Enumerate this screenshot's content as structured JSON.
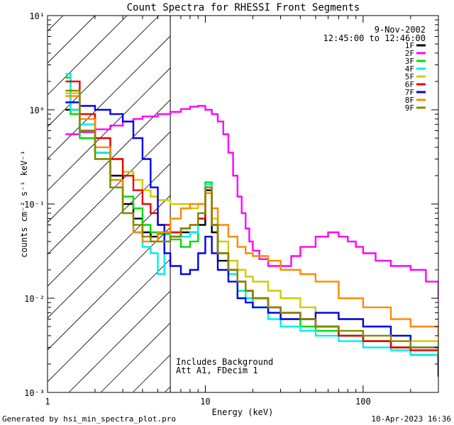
{
  "chart_data": {
    "type": "line",
    "title": "Count Spectra for RHESSI Front Segments",
    "xlabel": "Energy (keV)",
    "ylabel": "counts cm⁻² s⁻¹ keV⁻¹",
    "xscale": "log",
    "yscale": "log",
    "xlim": [
      1,
      300
    ],
    "ylim": [
      0.001,
      10
    ],
    "xticks": [
      {
        "value": 1,
        "label": "1"
      },
      {
        "value": 10,
        "label": "10"
      },
      {
        "value": 100,
        "label": "100"
      }
    ],
    "yticks": [
      {
        "value": 0.001,
        "label": "10⁻³"
      },
      {
        "value": 0.01,
        "label": "10⁻²"
      },
      {
        "value": 0.1,
        "label": "10⁻¹"
      },
      {
        "value": 1,
        "label": "10⁰"
      },
      {
        "value": 10,
        "label": "10¹"
      }
    ],
    "date": "9-Nov-2002",
    "time_range": "12:45:00 to 12:46:00",
    "shaded_region": {
      "x_from": 1,
      "x_to": 6,
      "pattern": "diagonal hatch"
    },
    "annotation_lines": [
      "Includes Background",
      "Att A1, FDecim 1"
    ],
    "footer_left": "Generated by hsi_min_spectra_plot.pro",
    "footer_right": "10-Apr-2023 16:36",
    "series": [
      {
        "name": "1F",
        "color": "#000000",
        "points": [
          [
            1.3,
            1.0
          ],
          [
            1.6,
            0.6
          ],
          [
            2,
            0.35
          ],
          [
            2.5,
            0.2
          ],
          [
            3,
            0.1
          ],
          [
            3.5,
            0.07
          ],
          [
            4,
            0.05
          ],
          [
            4.5,
            0.045
          ],
          [
            5,
            0.05
          ],
          [
            6,
            0.045
          ],
          [
            7,
            0.05
          ],
          [
            8,
            0.05
          ],
          [
            9,
            0.06
          ],
          [
            10,
            0.14
          ],
          [
            11,
            0.05
          ],
          [
            12,
            0.025
          ],
          [
            14,
            0.02
          ],
          [
            16,
            0.015
          ],
          [
            18,
            0.012
          ],
          [
            20,
            0.01
          ],
          [
            25,
            0.008
          ],
          [
            30,
            0.007
          ],
          [
            40,
            0.006
          ],
          [
            50,
            0.005
          ],
          [
            70,
            0.004
          ],
          [
            100,
            0.0035
          ],
          [
            150,
            0.003
          ],
          [
            200,
            0.0025
          ],
          [
            300,
            0.0015
          ]
        ]
      },
      {
        "name": "2F",
        "color": "#ff00ff",
        "points": [
          [
            1.3,
            0.55
          ],
          [
            1.6,
            0.58
          ],
          [
            2,
            0.62
          ],
          [
            2.5,
            0.68
          ],
          [
            3,
            0.75
          ],
          [
            3.5,
            0.8
          ],
          [
            4,
            0.85
          ],
          [
            5,
            0.9
          ],
          [
            6,
            0.95
          ],
          [
            7,
            1.02
          ],
          [
            8,
            1.08
          ],
          [
            9,
            1.1
          ],
          [
            10,
            1.0
          ],
          [
            11,
            0.9
          ],
          [
            12,
            0.75
          ],
          [
            13,
            0.55
          ],
          [
            14,
            0.35
          ],
          [
            15,
            0.2
          ],
          [
            16,
            0.12
          ],
          [
            17,
            0.08
          ],
          [
            18,
            0.055
          ],
          [
            19,
            0.04
          ],
          [
            20,
            0.032
          ],
          [
            22,
            0.026
          ],
          [
            25,
            0.022
          ],
          [
            30,
            0.022
          ],
          [
            35,
            0.028
          ],
          [
            40,
            0.035
          ],
          [
            50,
            0.045
          ],
          [
            60,
            0.05
          ],
          [
            70,
            0.045
          ],
          [
            80,
            0.04
          ],
          [
            90,
            0.035
          ],
          [
            100,
            0.03
          ],
          [
            120,
            0.025
          ],
          [
            150,
            0.022
          ],
          [
            200,
            0.02
          ],
          [
            250,
            0.015
          ],
          [
            300,
            0.01
          ]
        ]
      },
      {
        "name": "3F",
        "color": "#00dd00",
        "points": [
          [
            1.3,
            2.2
          ],
          [
            1.4,
            0.9
          ],
          [
            1.6,
            0.5
          ],
          [
            2,
            0.3
          ],
          [
            2.5,
            0.18
          ],
          [
            3,
            0.12
          ],
          [
            3.5,
            0.09
          ],
          [
            4,
            0.06
          ],
          [
            4.5,
            0.05
          ],
          [
            5,
            0.048
          ],
          [
            6,
            0.042
          ],
          [
            7,
            0.035
          ],
          [
            8,
            0.04
          ],
          [
            9,
            0.07
          ],
          [
            10,
            0.17
          ],
          [
            11,
            0.06
          ],
          [
            12,
            0.03
          ],
          [
            14,
            0.018
          ],
          [
            16,
            0.012
          ],
          [
            18,
            0.01
          ],
          [
            20,
            0.008
          ],
          [
            25,
            0.007
          ],
          [
            30,
            0.006
          ],
          [
            40,
            0.005
          ],
          [
            50,
            0.0045
          ],
          [
            70,
            0.004
          ],
          [
            100,
            0.0035
          ],
          [
            150,
            0.003
          ],
          [
            200,
            0.0025
          ],
          [
            300,
            0.002
          ]
        ]
      },
      {
        "name": "4F",
        "color": "#00eeee",
        "points": [
          [
            1.3,
            2.4
          ],
          [
            1.4,
            1.0
          ],
          [
            1.6,
            0.7
          ],
          [
            2,
            0.35
          ],
          [
            2.5,
            0.15
          ],
          [
            3,
            0.08
          ],
          [
            3.5,
            0.05
          ],
          [
            4,
            0.035
          ],
          [
            4.5,
            0.03
          ],
          [
            5,
            0.018
          ],
          [
            5.5,
            0.04
          ],
          [
            6,
            0.05
          ],
          [
            7,
            0.045
          ],
          [
            8,
            0.05
          ],
          [
            9,
            0.08
          ],
          [
            10,
            0.16
          ],
          [
            11,
            0.06
          ],
          [
            12,
            0.03
          ],
          [
            14,
            0.018
          ],
          [
            16,
            0.012
          ],
          [
            18,
            0.01
          ],
          [
            20,
            0.008
          ],
          [
            25,
            0.006
          ],
          [
            30,
            0.005
          ],
          [
            40,
            0.0045
          ],
          [
            50,
            0.004
          ],
          [
            70,
            0.0035
          ],
          [
            100,
            0.003
          ],
          [
            150,
            0.0028
          ],
          [
            200,
            0.0025
          ],
          [
            300,
            0.002
          ]
        ]
      },
      {
        "name": "5F",
        "color": "#cccc00",
        "points": [
          [
            1.3,
            1.5
          ],
          [
            1.6,
            0.9
          ],
          [
            2,
            0.5
          ],
          [
            2.5,
            0.3
          ],
          [
            3,
            0.22
          ],
          [
            3.5,
            0.18
          ],
          [
            4,
            0.14
          ],
          [
            4.5,
            0.12
          ],
          [
            5,
            0.11
          ],
          [
            6,
            0.1
          ],
          [
            7,
            0.1
          ],
          [
            8,
            0.09
          ],
          [
            9,
            0.1
          ],
          [
            10,
            0.15
          ],
          [
            11,
            0.07
          ],
          [
            12,
            0.04
          ],
          [
            14,
            0.025
          ],
          [
            16,
            0.02
          ],
          [
            18,
            0.017
          ],
          [
            20,
            0.015
          ],
          [
            25,
            0.012
          ],
          [
            30,
            0.01
          ],
          [
            40,
            0.008
          ],
          [
            50,
            0.007
          ],
          [
            70,
            0.006
          ],
          [
            100,
            0.005
          ],
          [
            150,
            0.004
          ],
          [
            200,
            0.0035
          ],
          [
            300,
            0.003
          ]
        ]
      },
      {
        "name": "6F",
        "color": "#ee0000",
        "points": [
          [
            1.3,
            2.0
          ],
          [
            1.6,
            0.9
          ],
          [
            2,
            0.5
          ],
          [
            2.5,
            0.3
          ],
          [
            3,
            0.2
          ],
          [
            3.5,
            0.14
          ],
          [
            4,
            0.1
          ],
          [
            4.5,
            0.08
          ],
          [
            5,
            0.06
          ],
          [
            6,
            0.05
          ],
          [
            7,
            0.055
          ],
          [
            8,
            0.06
          ],
          [
            9,
            0.07
          ],
          [
            10,
            0.13
          ],
          [
            11,
            0.06
          ],
          [
            12,
            0.03
          ],
          [
            14,
            0.02
          ],
          [
            16,
            0.015
          ],
          [
            18,
            0.012
          ],
          [
            20,
            0.01
          ],
          [
            25,
            0.008
          ],
          [
            30,
            0.007
          ],
          [
            40,
            0.006
          ],
          [
            50,
            0.005
          ],
          [
            70,
            0.004
          ],
          [
            100,
            0.0035
          ],
          [
            150,
            0.003
          ],
          [
            200,
            0.0028
          ],
          [
            300,
            0.002
          ]
        ]
      },
      {
        "name": "7F",
        "color": "#0000ee",
        "points": [
          [
            1.3,
            1.2
          ],
          [
            1.6,
            1.1
          ],
          [
            2,
            1.0
          ],
          [
            2.5,
            0.9
          ],
          [
            3,
            0.75
          ],
          [
            3.5,
            0.5
          ],
          [
            4,
            0.3
          ],
          [
            4.5,
            0.15
          ],
          [
            5,
            0.06
          ],
          [
            5.5,
            0.03
          ],
          [
            6,
            0.022
          ],
          [
            7,
            0.018
          ],
          [
            8,
            0.02
          ],
          [
            9,
            0.03
          ],
          [
            10,
            0.045
          ],
          [
            11,
            0.03
          ],
          [
            12,
            0.02
          ],
          [
            14,
            0.015
          ],
          [
            16,
            0.01
          ],
          [
            18,
            0.009
          ],
          [
            20,
            0.008
          ],
          [
            25,
            0.007
          ],
          [
            30,
            0.006
          ],
          [
            40,
            0.006
          ],
          [
            50,
            0.007
          ],
          [
            70,
            0.006
          ],
          [
            100,
            0.005
          ],
          [
            150,
            0.004
          ],
          [
            200,
            0.003
          ],
          [
            300,
            0.002
          ]
        ]
      },
      {
        "name": "8F",
        "color": "#ff8800",
        "points": [
          [
            1.3,
            1.4
          ],
          [
            1.6,
            0.8
          ],
          [
            2,
            0.4
          ],
          [
            2.5,
            0.18
          ],
          [
            3,
            0.08
          ],
          [
            3.5,
            0.05
          ],
          [
            4,
            0.04
          ],
          [
            4.5,
            0.04
          ],
          [
            5,
            0.05
          ],
          [
            6,
            0.07
          ],
          [
            7,
            0.09
          ],
          [
            8,
            0.1
          ],
          [
            9,
            0.1
          ],
          [
            10,
            0.13
          ],
          [
            11,
            0.09
          ],
          [
            12,
            0.06
          ],
          [
            14,
            0.045
          ],
          [
            16,
            0.035
          ],
          [
            18,
            0.03
          ],
          [
            20,
            0.028
          ],
          [
            25,
            0.025
          ],
          [
            30,
            0.02
          ],
          [
            40,
            0.018
          ],
          [
            50,
            0.015
          ],
          [
            70,
            0.01
          ],
          [
            100,
            0.008
          ],
          [
            150,
            0.006
          ],
          [
            200,
            0.005
          ],
          [
            300,
            0.004
          ]
        ]
      },
      {
        "name": "9F",
        "color": "#888800",
        "points": [
          [
            1.3,
            1.6
          ],
          [
            1.6,
            0.6
          ],
          [
            2,
            0.3
          ],
          [
            2.5,
            0.15
          ],
          [
            3,
            0.08
          ],
          [
            3.5,
            0.06
          ],
          [
            4,
            0.045
          ],
          [
            4.5,
            0.04
          ],
          [
            5,
            0.04
          ],
          [
            6,
            0.045
          ],
          [
            7,
            0.055
          ],
          [
            8,
            0.06
          ],
          [
            9,
            0.08
          ],
          [
            10,
            0.15
          ],
          [
            11,
            0.06
          ],
          [
            12,
            0.03
          ],
          [
            14,
            0.02
          ],
          [
            16,
            0.015
          ],
          [
            18,
            0.012
          ],
          [
            20,
            0.01
          ],
          [
            25,
            0.008
          ],
          [
            30,
            0.007
          ],
          [
            40,
            0.006
          ],
          [
            50,
            0.005
          ],
          [
            70,
            0.0045
          ],
          [
            100,
            0.004
          ],
          [
            150,
            0.0035
          ],
          [
            200,
            0.003
          ],
          [
            300,
            0.0025
          ]
        ]
      }
    ]
  }
}
